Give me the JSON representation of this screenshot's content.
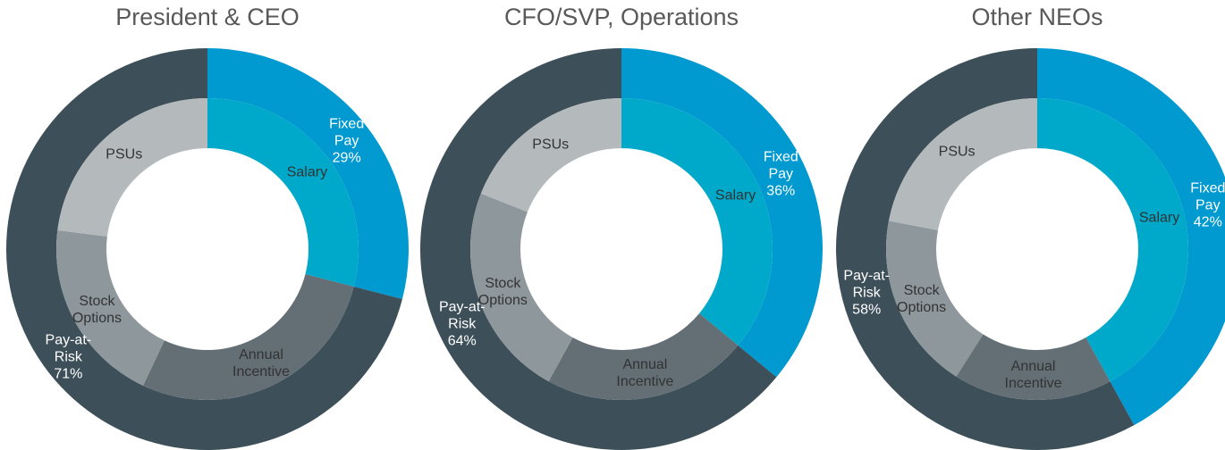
{
  "chart_data": [
    {
      "type": "pie",
      "title": "President & CEO",
      "outer": {
        "categories": [
          "Fixed Pay",
          "Pay-at-Risk"
        ],
        "values": [
          29,
          71
        ],
        "value_labels": [
          "29%",
          "71%"
        ],
        "colors": [
          "#0099d0",
          "#3d4f59"
        ]
      },
      "inner": {
        "categories": [
          "Salary",
          "Annual Incentive",
          "Stock Options",
          "PSUs"
        ],
        "values": [
          29,
          28,
          20,
          23
        ],
        "colors": [
          "#00a9c9",
          "#636f75",
          "#8d979c",
          "#b4b9bc"
        ]
      }
    },
    {
      "type": "pie",
      "title": "CFO/SVP, Operations",
      "outer": {
        "categories": [
          "Fixed Pay",
          "Pay-at-Risk"
        ],
        "values": [
          36,
          64
        ],
        "value_labels": [
          "36%",
          "64%"
        ],
        "colors": [
          "#0099d0",
          "#3d4f59"
        ]
      },
      "inner": {
        "categories": [
          "Salary",
          "Annual Incentive",
          "Stock Options",
          "PSUs"
        ],
        "values": [
          36,
          22,
          23,
          19
        ],
        "colors": [
          "#00a9c9",
          "#636f75",
          "#8d979c",
          "#b4b9bc"
        ]
      }
    },
    {
      "type": "pie",
      "title": "Other NEOs",
      "outer": {
        "categories": [
          "Fixed Pay",
          "Pay-at-Risk"
        ],
        "values": [
          42,
          58
        ],
        "value_labels": [
          "42%",
          "58%"
        ],
        "colors": [
          "#0099d0",
          "#3d4f59"
        ]
      },
      "inner": {
        "categories": [
          "Salary",
          "Annual Incentive",
          "Stock Options",
          "PSUs"
        ],
        "values": [
          42,
          17,
          19,
          22
        ],
        "colors": [
          "#00a9c9",
          "#636f75",
          "#8d979c",
          "#b4b9bc"
        ]
      }
    }
  ]
}
